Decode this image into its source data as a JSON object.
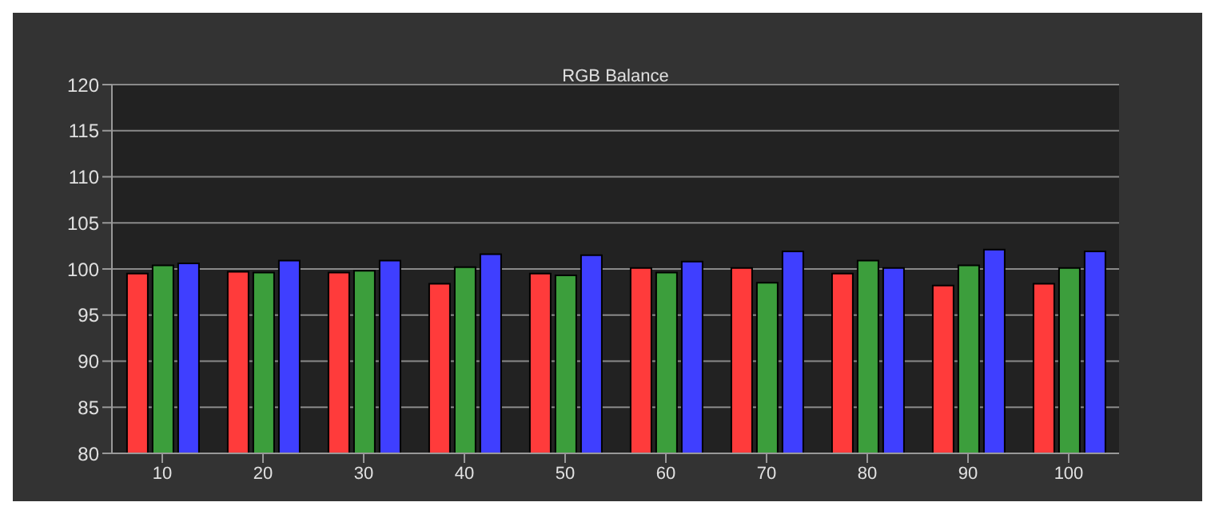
{
  "chart_data": {
    "type": "bar",
    "title": "RGB Balance",
    "categories": [
      "10",
      "20",
      "30",
      "40",
      "50",
      "60",
      "70",
      "80",
      "90",
      "100"
    ],
    "series": [
      {
        "color": "#ff3b3b",
        "values": [
          99.5,
          99.7,
          99.6,
          98.4,
          99.5,
          100.1,
          100.1,
          99.5,
          98.2,
          98.4
        ]
      },
      {
        "color": "#3c9e3c",
        "values": [
          100.4,
          99.6,
          99.8,
          100.2,
          99.3,
          99.6,
          98.5,
          100.9,
          100.4,
          100.1
        ]
      },
      {
        "color": "#3f3fff",
        "values": [
          100.6,
          100.9,
          100.9,
          101.6,
          101.5,
          100.8,
          101.9,
          100.1,
          102.1,
          101.9
        ]
      }
    ],
    "ylim": [
      80,
      120
    ],
    "yticks": [
      80,
      85,
      90,
      95,
      100,
      105,
      110,
      115,
      120
    ],
    "grid": "y",
    "legend": false
  }
}
